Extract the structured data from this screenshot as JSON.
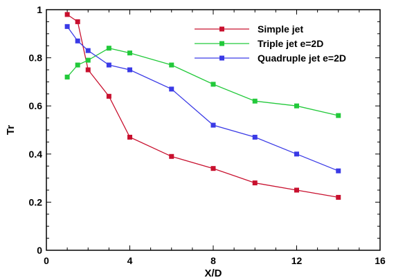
{
  "chart_data": {
    "type": "line",
    "title": "",
    "xlabel": "X/D",
    "ylabel": "Tr",
    "xlim": [
      0,
      16
    ],
    "ylim": [
      0,
      1
    ],
    "x_ticks": [
      0,
      4,
      8,
      12,
      16
    ],
    "y_ticks": [
      0,
      0.2,
      0.4,
      0.6,
      0.8,
      1
    ],
    "x_tick_labels": [
      "0",
      "4",
      "8",
      "12",
      "16"
    ],
    "y_tick_labels": [
      "0",
      "0.2",
      "0.4",
      "0.6",
      "0.8",
      "1"
    ],
    "grid": false,
    "legend_position": "top-right",
    "series": [
      {
        "name": "Simple jet",
        "color": "#c8102e",
        "marker": "square",
        "x": [
          1,
          1.5,
          2,
          3,
          4,
          6,
          8,
          10,
          12,
          14
        ],
        "y": [
          0.98,
          0.95,
          0.75,
          0.64,
          0.47,
          0.39,
          0.34,
          0.28,
          0.25,
          0.22
        ]
      },
      {
        "name": "Triple jet e=2D",
        "color": "#22c93a",
        "marker": "square",
        "x": [
          1,
          1.5,
          2,
          3,
          4,
          6,
          8,
          10,
          12,
          14
        ],
        "y": [
          0.72,
          0.77,
          0.79,
          0.84,
          0.82,
          0.77,
          0.69,
          0.62,
          0.6,
          0.56
        ]
      },
      {
        "name": "Quadruple jet e=2D",
        "color": "#3a3ae6",
        "marker": "square",
        "x": [
          1,
          1.5,
          2,
          3,
          4,
          6,
          8,
          10,
          12,
          14
        ],
        "y": [
          0.93,
          0.87,
          0.83,
          0.77,
          0.75,
          0.67,
          0.52,
          0.47,
          0.4,
          0.33
        ]
      }
    ]
  }
}
